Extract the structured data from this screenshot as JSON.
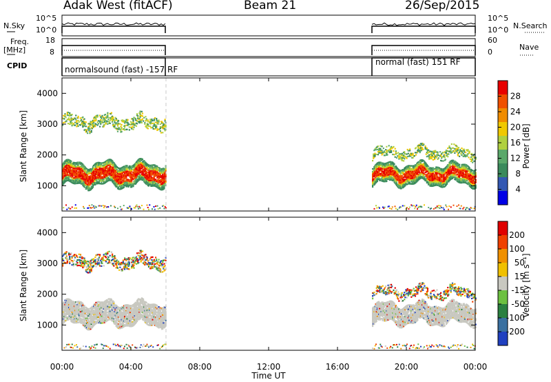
{
  "header": {
    "station": "Adak West (fitACF)",
    "beam": "Beam 21",
    "date": "26/Sep/2015"
  },
  "side_labels": {
    "nsky": "N.Sky",
    "freq_line1": "Freq.",
    "freq_line2": "[MHz]",
    "cpid": "CPID",
    "nsearch": "N.Search",
    "nave": "Nave"
  },
  "mini_axis_ticks": {
    "noise_left": [
      "10^5",
      "10^0"
    ],
    "noise_right": [
      "10^5",
      "10^0"
    ],
    "freq_left": [
      "18",
      "8"
    ],
    "freq_right": [
      "60",
      "0"
    ]
  },
  "cpid_segments": [
    {
      "label": "normalsound (fast) -157 RF",
      "start_hour": 0,
      "end_hour": 6
    },
    {
      "label": "normal (fast) 151 RF",
      "start_hour": 18,
      "end_hour": 24
    }
  ],
  "x_axis": {
    "label": "Time UT",
    "ticks": [
      "00:00",
      "04:00",
      "08:00",
      "12:00",
      "16:00",
      "20:00",
      "00:00"
    ],
    "range_hours": [
      0,
      24
    ]
  },
  "panels": [
    {
      "ylabel": "Slant Range [km]",
      "yticks": [
        "4000",
        "3000",
        "2000",
        "1000"
      ],
      "colorbar_label": "Power [dB]",
      "colorbar_ticks": [
        "28",
        "24",
        "20",
        "16",
        "12",
        "8",
        "4"
      ],
      "colors": [
        "#0000e6",
        "#3358b3",
        "#3a8a5c",
        "#5aa86a",
        "#b0d040",
        "#f0c800",
        "#f08c00",
        "#f05000",
        "#e80000"
      ]
    },
    {
      "ylabel": "Slant Range [km]",
      "yticks": [
        "4000",
        "3000",
        "2000",
        "1000"
      ],
      "colorbar_label": "Velocity [m s⁻¹]",
      "colorbar_ticks": [
        "200",
        "100",
        "50",
        "15",
        "-15",
        "-50",
        "-100",
        "-200"
      ],
      "colors": [
        "#2040c0",
        "#3a70a0",
        "#2a8040",
        "#6cc040",
        "#c8c8c0",
        "#f0c000",
        "#f09000",
        "#f04000",
        "#e00000"
      ]
    }
  ],
  "chart_data": {
    "type": "heatmap",
    "title": "Adak West (fitACF) Beam 21 26/Sep/2015",
    "xlabel": "Time UT",
    "ylabel": "Slant Range [km]",
    "x_range_hours": [
      0,
      24
    ],
    "y_range_km": [
      180,
      4500
    ],
    "data_windows_hours": [
      [
        0,
        6
      ],
      [
        18,
        24
      ]
    ],
    "power_scale_db": [
      0,
      30
    ],
    "velocity_scale_ms": [
      -250,
      250
    ],
    "scatter_bands": [
      {
        "segment": "00:00-06:00",
        "center_range_km": 1400,
        "thickness_km": 700,
        "power_db": 27,
        "velocity": "ground scatter (~0 m/s)"
      },
      {
        "segment": "00:00-06:00",
        "center_range_km": 3100,
        "thickness_km": 400,
        "power_db": 14,
        "velocity": "mixed"
      },
      {
        "segment": "18:00-24:00",
        "center_range_km": 1400,
        "thickness_km": 600,
        "power_db": 26,
        "velocity": "ground scatter (~0 m/s)"
      },
      {
        "segment": "18:00-24:00",
        "center_range_km": 2100,
        "thickness_km": 300,
        "power_db": 10,
        "velocity": "mixed"
      }
    ]
  }
}
